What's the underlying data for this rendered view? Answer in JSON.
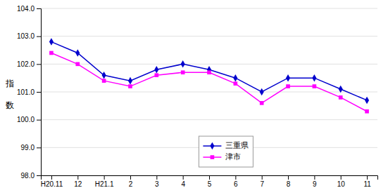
{
  "chart_data": {
    "type": "line",
    "ylabel": [
      "指",
      "数"
    ],
    "categories": [
      "H20.11",
      "12",
      "H21.1",
      "2",
      "3",
      "4",
      "5",
      "6",
      "7",
      "8",
      "9",
      "10",
      "11"
    ],
    "series": [
      {
        "name": "三重県",
        "color": "#0000CD",
        "marker": "diamond",
        "line_style": "solid",
        "values": [
          102.8,
          102.4,
          101.6,
          101.4,
          101.8,
          102.0,
          101.8,
          101.5,
          101.0,
          101.5,
          101.5,
          101.1,
          100.7
        ]
      },
      {
        "name": "津市",
        "color": "#FF00FF",
        "marker": "square",
        "line_style": "solid",
        "values": [
          102.4,
          102.0,
          101.4,
          101.2,
          101.6,
          101.7,
          101.7,
          101.3,
          100.6,
          101.2,
          101.2,
          100.8,
          100.3
        ]
      }
    ],
    "ylim": [
      98.0,
      104.0
    ],
    "yticks": [
      {
        "value": 98.0,
        "label": "98.0"
      },
      {
        "value": 99.0,
        "label": "99.0"
      },
      {
        "value": 100.0,
        "label": "100.0"
      },
      {
        "value": 101.0,
        "label": "101.0"
      },
      {
        "value": 102.0,
        "label": "102.0"
      },
      {
        "value": 103.0,
        "label": "103.0"
      },
      {
        "value": 104.0,
        "label": "104.0"
      }
    ],
    "grid": true,
    "legend": "lower center"
  }
}
